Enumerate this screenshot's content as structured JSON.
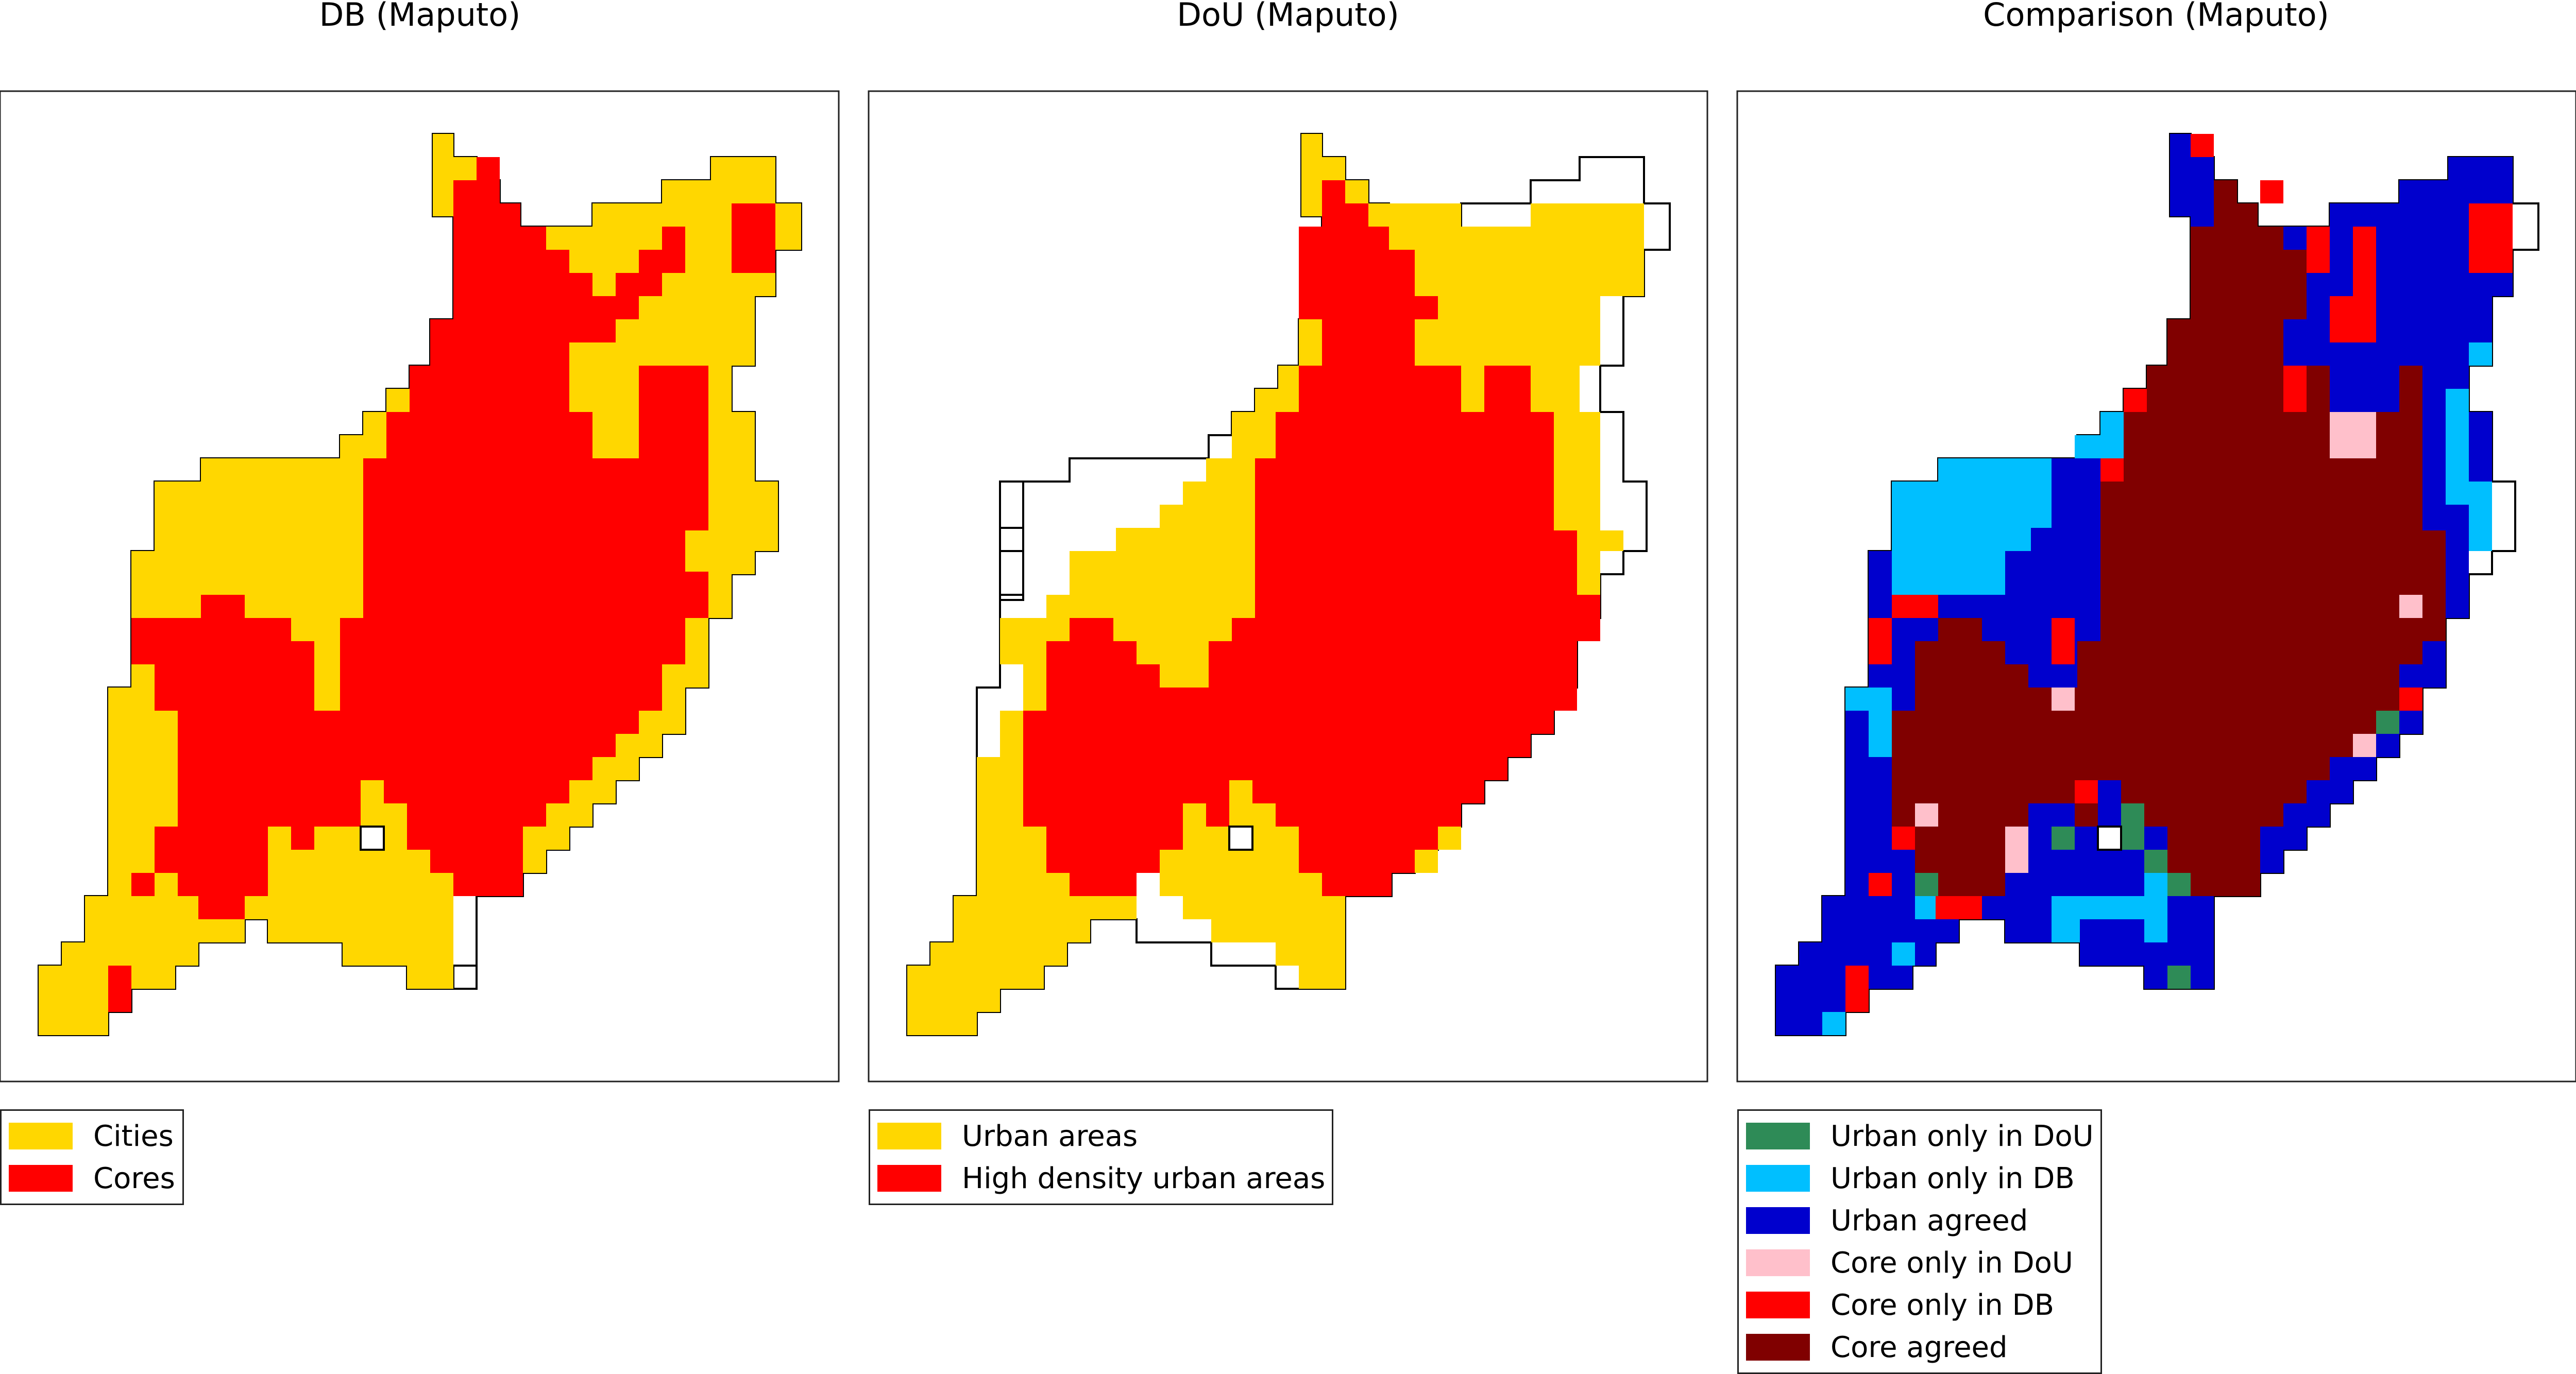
{
  "colors": {
    "cities": "#ffd700",
    "cores": "#ff0000",
    "urban_only_dou": "#2e8b57",
    "urban_only_db": "#00bfff",
    "urban_agreed": "#0000cd",
    "core_only_dou": "#ffc0cb",
    "core_only_db": "#ff0000",
    "core_agreed": "#800000"
  },
  "panels": [
    {
      "id": "db",
      "title": "DB (Maputo)",
      "legend": [
        {
          "label": "Cities",
          "color": "#ffd700"
        },
        {
          "label": "Cores",
          "color": "#ff0000"
        }
      ]
    },
    {
      "id": "dou",
      "title": "DoU (Maputo)",
      "legend": [
        {
          "label": "Urban areas",
          "color": "#ffd700"
        },
        {
          "label": "High density urban areas",
          "color": "#ff0000"
        }
      ]
    },
    {
      "id": "cmp",
      "title": "Comparison (Maputo)",
      "legend": [
        {
          "label": "Urban only in DoU",
          "color": "#2e8b57"
        },
        {
          "label": "Urban only in DB",
          "color": "#00bfff"
        },
        {
          "label": "Urban agreed",
          "color": "#0000cd"
        },
        {
          "label": "Core only in DoU",
          "color": "#ffc0cb"
        },
        {
          "label": "Core only in DB",
          "color": "#ff0000"
        },
        {
          "label": "Core agreed",
          "color": "#800000"
        }
      ]
    }
  ]
}
